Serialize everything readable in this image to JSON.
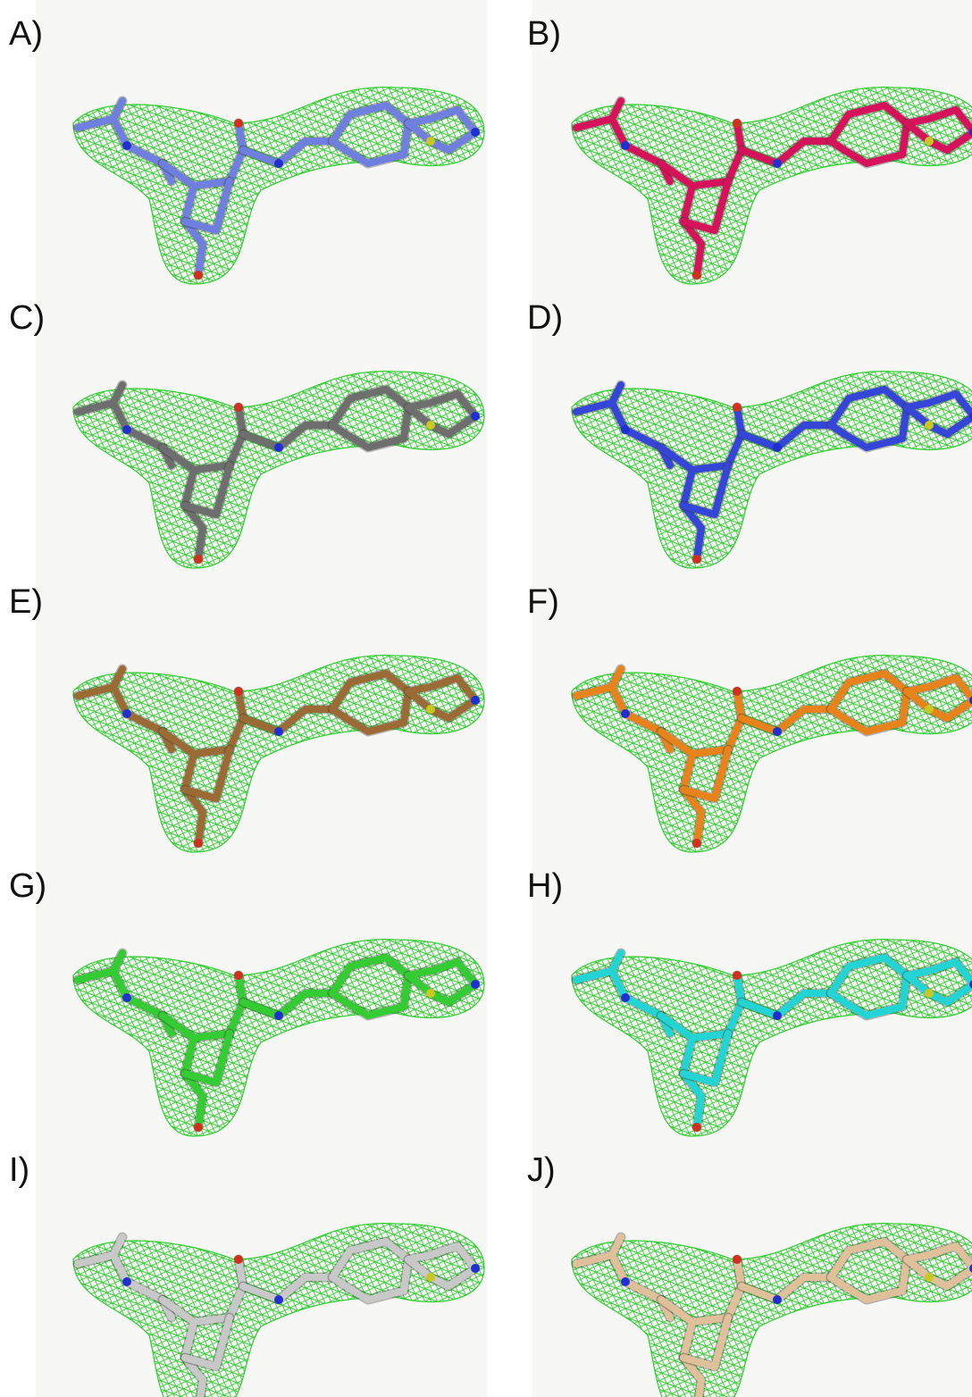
{
  "panels": [
    {
      "label": "A)"
    },
    {
      "label": "B)"
    },
    {
      "label": "C)"
    },
    {
      "label": "D)"
    },
    {
      "label": "E)"
    },
    {
      "label": "F)"
    },
    {
      "label": "G)"
    },
    {
      "label": "H)"
    },
    {
      "label": "I)"
    },
    {
      "label": "J)"
    }
  ]
}
